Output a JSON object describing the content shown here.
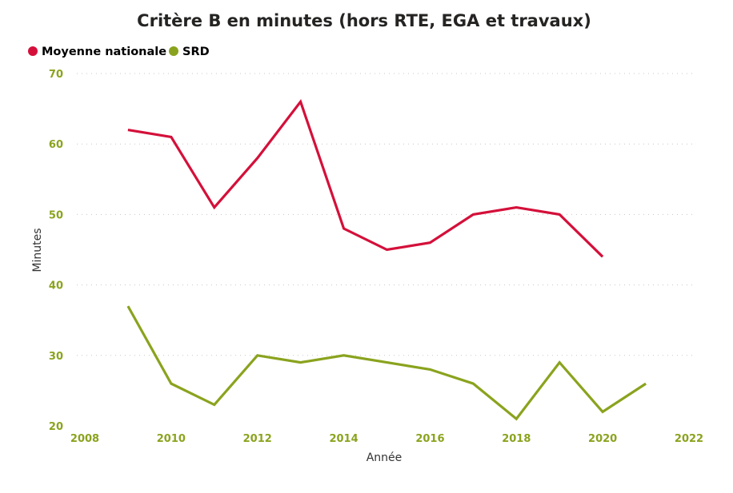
{
  "chart_data": {
    "type": "line",
    "title": "Critère B en minutes (hors RTE, EGA et travaux)",
    "xlabel": "Année",
    "ylabel": "Minutes",
    "xlim": [
      2008,
      2022
    ],
    "ylim": [
      20,
      70
    ],
    "x_ticks": [
      2008,
      2010,
      2012,
      2014,
      2016,
      2018,
      2020,
      2022
    ],
    "y_ticks": [
      20,
      30,
      40,
      50,
      60,
      70
    ],
    "grid": "horizontal dotted",
    "legend_position": "top-left",
    "tick_color": "#8aa31e",
    "series": [
      {
        "name": "Moyenne nationale",
        "color": "#d4103a",
        "x": [
          2009,
          2010,
          2011,
          2012,
          2013,
          2014,
          2015,
          2016,
          2017,
          2018,
          2019,
          2020
        ],
        "values": [
          62,
          61,
          51,
          58,
          66,
          48,
          45,
          46,
          50,
          51,
          50,
          44
        ]
      },
      {
        "name": "SRD",
        "color": "#8aa31e",
        "x": [
          2009,
          2010,
          2011,
          2012,
          2013,
          2014,
          2015,
          2016,
          2017,
          2018,
          2019,
          2020,
          2021
        ],
        "values": [
          37,
          26,
          23,
          30,
          29,
          30,
          29,
          28,
          26,
          21,
          29,
          22,
          26
        ]
      }
    ]
  }
}
